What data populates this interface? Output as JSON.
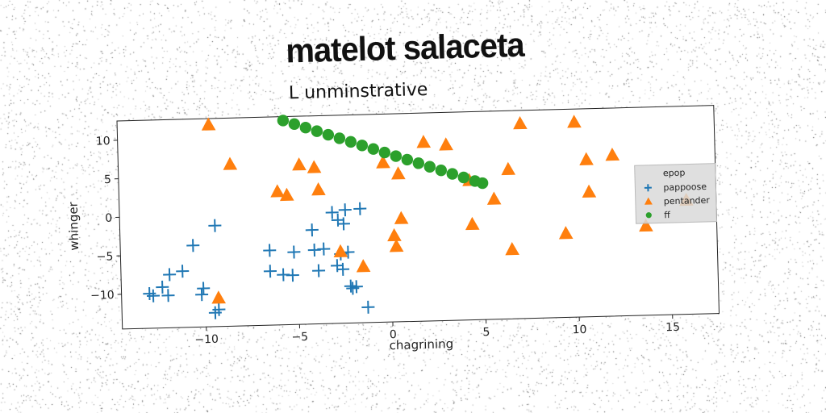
{
  "main_title": "matelot salaceta",
  "chart_data": {
    "type": "scatter",
    "title": "L unminstrative",
    "xlabel": "chagrining",
    "ylabel": "whinger",
    "xlim": [
      -14.5,
      17.5
    ],
    "ylim": [
      -14.5,
      12.5
    ],
    "xticks": [
      -10,
      -5,
      0,
      5,
      10,
      15
    ],
    "yticks": [
      -10,
      -5,
      0,
      5,
      10
    ],
    "grid": false,
    "legend": {
      "placement": "right",
      "title": "epop",
      "entries": [
        "pappoose",
        "pentander",
        "ff"
      ]
    },
    "colors": {
      "pappoose": "#1f77b4",
      "pentander": "#ff7f0e",
      "ff": "#2ca02c"
    },
    "series": [
      {
        "name": "pappoose",
        "marker": "plus",
        "x": [
          -13.0,
          -12.8,
          -12.3,
          -12.0,
          -11.9,
          -11.2,
          -10.6,
          -10.2,
          -10.1,
          -9.5,
          -9.4,
          -9.3,
          -6.5,
          -6.5,
          -5.8,
          -5.3,
          -5.2,
          -4.2,
          -4.1,
          -3.9,
          -3.6,
          -3.1,
          -2.9,
          -2.8,
          -2.7,
          -2.6,
          -2.5,
          -2.4,
          -2.3,
          -2.2,
          -2.1,
          -1.9,
          -1.6,
          -1.3
        ],
        "y": [
          -10.0,
          -10.3,
          -9.2,
          -10.3,
          -7.6,
          -7.2,
          -3.9,
          -10.3,
          -9.5,
          -12.7,
          -1.4,
          -12.3,
          -4.8,
          -7.5,
          -8.0,
          -8.1,
          -5.1,
          -2.3,
          -4.9,
          -7.6,
          -4.8,
          -0.1,
          -7.0,
          -1.1,
          -5.5,
          -7.5,
          -1.6,
          0.2,
          -5.3,
          -9.7,
          -10.0,
          -9.8,
          0.3,
          -12.5
        ]
      },
      {
        "name": "pentander",
        "marker": "triangle",
        "x": [
          -9.6,
          -8.5,
          -9.3,
          -6.0,
          -5.5,
          -4.8,
          -4.0,
          -3.8,
          -2.7,
          -1.5,
          -0.3,
          0.2,
          0.3,
          0.5,
          0.6,
          1.9,
          3.1,
          4.3,
          4.4,
          5.6,
          6.4,
          6.5,
          7.1,
          9.4,
          10.0,
          10.6,
          10.7,
          12.0,
          13.7,
          15.9
        ],
        "y": [
          11.7,
          6.5,
          -10.8,
          2.8,
          2.3,
          6.2,
          5.8,
          2.9,
          -5.2,
          -7.2,
          6.2,
          -3.3,
          -4.7,
          4.7,
          -1.1,
          8.7,
          8.3,
          3.6,
          -2.1,
          1.1,
          4.9,
          -5.5,
          10.8,
          -3.6,
          10.8,
          5.9,
          1.7,
          6.4,
          -2.9,
          0.3
        ]
      },
      {
        "name": "ff",
        "marker": "circle",
        "x": [
          -5.6,
          -5.0,
          -4.4,
          -3.8,
          -3.2,
          -2.6,
          -2.0,
          -1.4,
          -0.8,
          -0.2,
          0.4,
          1.0,
          1.6,
          2.2,
          2.8,
          3.4,
          4.0,
          4.6,
          5.0
        ],
        "y": [
          12.0,
          11.5,
          11.0,
          10.5,
          10.0,
          9.5,
          9.0,
          8.5,
          8.0,
          7.5,
          7.0,
          6.5,
          6.0,
          5.5,
          5.0,
          4.5,
          4.0,
          3.5,
          3.2
        ]
      }
    ]
  }
}
